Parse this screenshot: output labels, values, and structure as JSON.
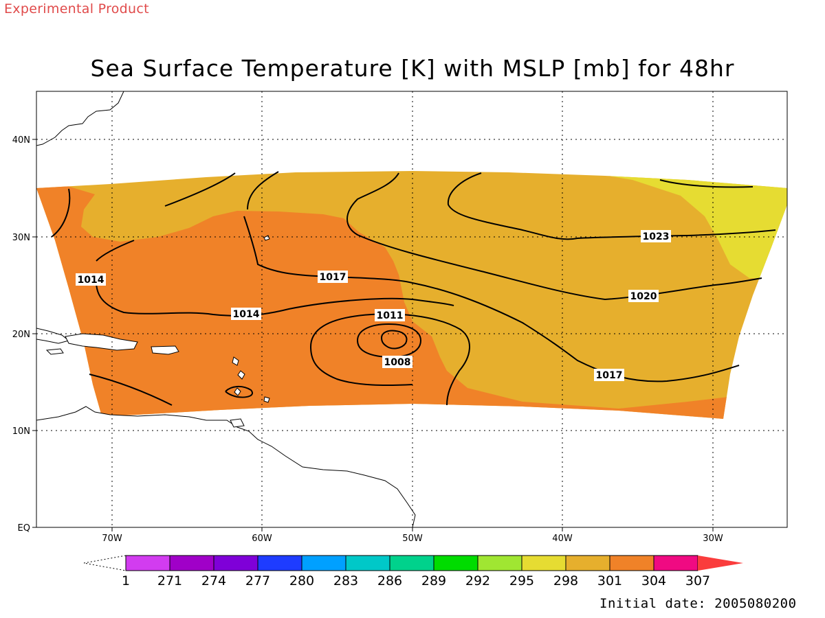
{
  "banner": "Experimental Product",
  "title": "Sea Surface Temperature [K] with MSLP [mb] for 48hr",
  "initial_date": "Initial date: 2005080200",
  "axes": {
    "lon_labels": [
      "70W",
      "60W",
      "50W",
      "40W",
      "30W"
    ],
    "lat_labels": [
      "40N",
      "30N",
      "20N",
      "10N",
      "EQ"
    ]
  },
  "colorbar": {
    "labels": [
      "1",
      "271",
      "274",
      "277",
      "280",
      "283",
      "286",
      "289",
      "292",
      "295",
      "298",
      "301",
      "304",
      "307"
    ],
    "colors": [
      "#d23cf0",
      "#a000c8",
      "#7f00d8",
      "#1e3cff",
      "#00a0ff",
      "#00c8c8",
      "#00d28c",
      "#00dc00",
      "#a0e632",
      "#e6dc32",
      "#e6af2d",
      "#f08228",
      "#f00a82",
      "#fa3c3c"
    ],
    "open_left": true,
    "arrow_right": true
  },
  "map": {
    "sst_colors": {
      "t298": "#e6dc32",
      "t301": "#e6af2d",
      "t304": "#f08228"
    },
    "isobar_labels": [
      {
        "text": "1014",
        "id": "a"
      },
      {
        "text": "1014",
        "id": "b"
      },
      {
        "text": "1017",
        "id": "c"
      },
      {
        "text": "1011",
        "id": "d"
      },
      {
        "text": "1008",
        "id": "e"
      },
      {
        "text": "1023",
        "id": "f"
      },
      {
        "text": "1020",
        "id": "g"
      },
      {
        "text": "1017",
        "id": "h"
      }
    ]
  }
}
